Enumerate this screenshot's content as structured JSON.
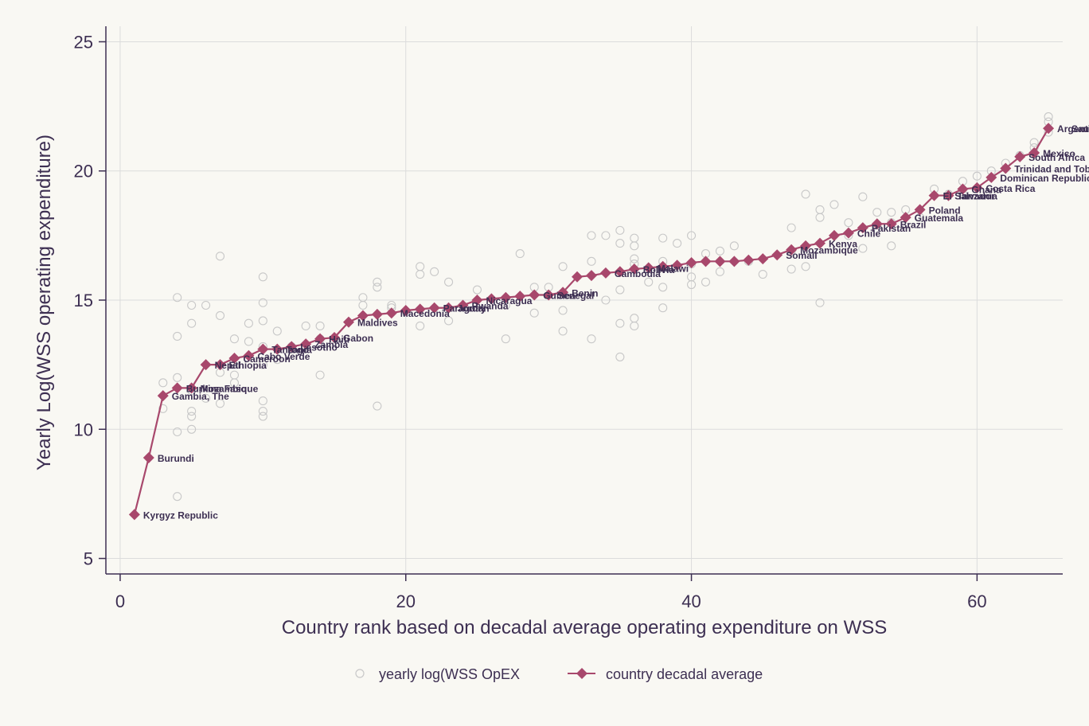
{
  "chart_data": {
    "type": "line",
    "title": "",
    "xlabel": "Country rank based on decadal average operating expenditure on WSS",
    "ylabel": "Yearly Log(WSS operating expenditure)",
    "xlim": [
      -1,
      66
    ],
    "ylim": [
      4.4,
      25.6
    ],
    "xticks": [
      0,
      20,
      40,
      60
    ],
    "yticks": [
      5,
      10,
      15,
      20,
      25
    ],
    "grid": true,
    "legend": {
      "position": "bottom",
      "entries": [
        "yearly log(WSS OpEX",
        "country decadal average"
      ]
    },
    "colors": {
      "average": "#a8486c",
      "yearly": "#c8c8c8",
      "axis": "#3d2f52",
      "grid": "#dcdcdc",
      "background": "#f9f8f3"
    },
    "series": [
      {
        "name": "country decadal average",
        "x": [
          1,
          2,
          3,
          4,
          5,
          6,
          7,
          8,
          9,
          10,
          11,
          12,
          13,
          14,
          15,
          16,
          17,
          18,
          19,
          20,
          21,
          22,
          23,
          24,
          25,
          26,
          27,
          28,
          29,
          30,
          31,
          32,
          33,
          34,
          35,
          36,
          37,
          38,
          39,
          40,
          41,
          42,
          43,
          44,
          45,
          46,
          47,
          48,
          49,
          50,
          51,
          52,
          53,
          54,
          55,
          56,
          57,
          58,
          59,
          60,
          61,
          62,
          63,
          64,
          65
        ],
        "y": [
          6.7,
          8.9,
          11.3,
          11.6,
          11.6,
          12.5,
          12.5,
          12.75,
          12.85,
          13.1,
          13.1,
          13.2,
          13.3,
          13.5,
          13.55,
          14.15,
          14.4,
          14.45,
          14.5,
          14.6,
          14.65,
          14.7,
          14.7,
          14.8,
          15.0,
          15.05,
          15.1,
          15.15,
          15.2,
          15.2,
          15.3,
          15.9,
          15.95,
          16.05,
          16.1,
          16.2,
          16.25,
          16.3,
          16.35,
          16.45,
          16.5,
          16.5,
          16.5,
          16.55,
          16.6,
          16.75,
          16.95,
          17.1,
          17.2,
          17.5,
          17.6,
          17.8,
          17.95,
          17.95,
          18.2,
          18.5,
          19.05,
          19.05,
          19.3,
          19.35,
          19.75,
          20.1,
          20.55,
          20.7,
          21.65
        ]
      },
      {
        "name": "yearly log(WSS OpEX",
        "x": [
          3,
          3,
          4,
          4,
          4,
          4,
          4,
          5,
          5,
          5,
          5,
          5,
          5,
          6,
          6,
          7,
          7,
          7,
          7,
          8,
          8,
          8,
          9,
          9,
          10,
          10,
          10,
          10,
          10,
          10,
          10,
          10,
          11,
          11,
          12,
          13,
          14,
          14,
          14,
          17,
          17,
          18,
          18,
          18,
          19,
          19,
          21,
          21,
          21,
          22,
          23,
          23,
          25,
          27,
          27,
          28,
          29,
          29,
          30,
          31,
          31,
          31,
          33,
          33,
          33,
          34,
          34,
          35,
          35,
          35,
          35,
          35,
          36,
          36,
          36,
          36,
          36,
          36,
          37,
          38,
          38,
          38,
          38,
          39,
          40,
          40,
          40,
          40,
          41,
          41,
          42,
          42,
          43,
          44,
          45,
          47,
          47,
          47,
          48,
          48,
          49,
          49,
          49,
          50,
          51,
          51,
          52,
          52,
          53,
          53,
          54,
          54,
          54,
          55,
          56,
          57,
          58,
          59,
          59,
          60,
          61,
          62,
          63,
          64,
          64,
          65,
          65,
          65
        ],
        "y": [
          11.8,
          10.8,
          15.1,
          13.6,
          12,
          9.9,
          7.4,
          14.8,
          14.1,
          11.5,
          10.7,
          10.5,
          10,
          14.8,
          11.2,
          16.7,
          14.4,
          12.2,
          11,
          13.5,
          12.1,
          11.8,
          14.1,
          13.4,
          15.9,
          14.9,
          14.2,
          13.2,
          12.5,
          11.1,
          10.7,
          10.5,
          13.8,
          12.7,
          13.2,
          14,
          14,
          13.5,
          12.1,
          15.1,
          14.8,
          15.7,
          15.5,
          10.9,
          14.8,
          14.7,
          16.3,
          16,
          14,
          16.1,
          15.7,
          14.2,
          15.4,
          14.8,
          13.5,
          16.8,
          15.5,
          14.5,
          15.5,
          16.3,
          14.6,
          13.8,
          17.5,
          16.5,
          13.5,
          17.5,
          15,
          17.7,
          17.2,
          15.4,
          14.1,
          12.8,
          17.4,
          17.1,
          16.6,
          16.4,
          14.3,
          14,
          15.7,
          17.4,
          16.5,
          15.5,
          14.7,
          17.2,
          17.5,
          16.4,
          15.9,
          15.6,
          16.8,
          15.7,
          16.9,
          16.1,
          17.1,
          16.5,
          16,
          17.8,
          16.9,
          16.2,
          19.1,
          16.3,
          18.5,
          18.2,
          14.9,
          18.7,
          18,
          17.5,
          19,
          17,
          18.4,
          17.9,
          18.4,
          18,
          17.1,
          18.5,
          18.2,
          19.3,
          19.1,
          19.6,
          19.1,
          19.8,
          20,
          20.3,
          20.6,
          21.1,
          20.9,
          22.1,
          21.9,
          21.5
        ]
      }
    ],
    "point_labels": [
      {
        "x": 1,
        "y": 6.7,
        "text": "Kyrgyz Republic"
      },
      {
        "x": 2,
        "y": 8.9,
        "text": "Burundi"
      },
      {
        "x": 3,
        "y": 11.3,
        "text": "Gambia, The"
      },
      {
        "x": 4,
        "y": 11.6,
        "text": "Burkina Faso"
      },
      {
        "x": 5,
        "y": 11.6,
        "text": "Mozambique"
      },
      {
        "x": 6,
        "y": 12.5,
        "text": "Nepal"
      },
      {
        "x": 7,
        "y": 12.5,
        "text": "Ethiopia"
      },
      {
        "x": 8,
        "y": 12.75,
        "text": "Cameroon"
      },
      {
        "x": 9,
        "y": 12.85,
        "text": "Cabo Verde"
      },
      {
        "x": 10,
        "y": 13.1,
        "text": "Tanzania"
      },
      {
        "x": 11,
        "y": 13.1,
        "text": "Togo"
      },
      {
        "x": 12,
        "y": 13.2,
        "text": "Lesotho"
      },
      {
        "x": 13,
        "y": 13.3,
        "text": "Zambia"
      },
      {
        "x": 14,
        "y": 13.5,
        "text": "Haiti"
      },
      {
        "x": 15,
        "y": 13.55,
        "text": "Gabon"
      },
      {
        "x": 16,
        "y": 14.15,
        "text": "Maldives"
      },
      {
        "x": 19,
        "y": 14.5,
        "text": "Macedonia"
      },
      {
        "x": 22,
        "y": 14.7,
        "text": "Paraguay"
      },
      {
        "x": 23,
        "y": 14.7,
        "text": "Jordan"
      },
      {
        "x": 24,
        "y": 14.8,
        "text": "Rwanda"
      },
      {
        "x": 25,
        "y": 15.0,
        "text": "Nicaragua"
      },
      {
        "x": 29,
        "y": 15.2,
        "text": "Guinea"
      },
      {
        "x": 30,
        "y": 15.2,
        "text": "Senegal"
      },
      {
        "x": 31,
        "y": 15.3,
        "text": "Benin"
      },
      {
        "x": 34,
        "y": 16.05,
        "text": "Cambodia"
      },
      {
        "x": 36,
        "y": 16.2,
        "text": "Bolivia"
      },
      {
        "x": 37,
        "y": 16.25,
        "text": "Malawi"
      },
      {
        "x": 46,
        "y": 16.75,
        "text": "Somali"
      },
      {
        "x": 47,
        "y": 16.95,
        "text": "Mozambique"
      },
      {
        "x": 49,
        "y": 17.2,
        "text": "Kenya"
      },
      {
        "x": 51,
        "y": 17.6,
        "text": "Chile"
      },
      {
        "x": 52,
        "y": 17.8,
        "text": "Pakistan"
      },
      {
        "x": 54,
        "y": 17.95,
        "text": "Brazil"
      },
      {
        "x": 55,
        "y": 18.2,
        "text": "Guatemala"
      },
      {
        "x": 56,
        "y": 18.5,
        "text": "Poland"
      },
      {
        "x": 57,
        "y": 19.05,
        "text": "El Salvador"
      },
      {
        "x": 58,
        "y": 19.05,
        "text": "Tanzania"
      },
      {
        "x": 59,
        "y": 19.3,
        "text": "Ghana"
      },
      {
        "x": 60,
        "y": 19.35,
        "text": "Costa Rica"
      },
      {
        "x": 61,
        "y": 19.75,
        "text": "Dominican Republic"
      },
      {
        "x": 62,
        "y": 20.1,
        "text": "Trinidad and Tobago"
      },
      {
        "x": 63,
        "y": 20.55,
        "text": "South Africa"
      },
      {
        "x": 64,
        "y": 20.7,
        "text": "Mexico"
      },
      {
        "x": 65,
        "y": 21.65,
        "text": "Argentina"
      },
      {
        "x": 66,
        "y": 21.65,
        "text": "Saudi Arabia"
      }
    ]
  }
}
